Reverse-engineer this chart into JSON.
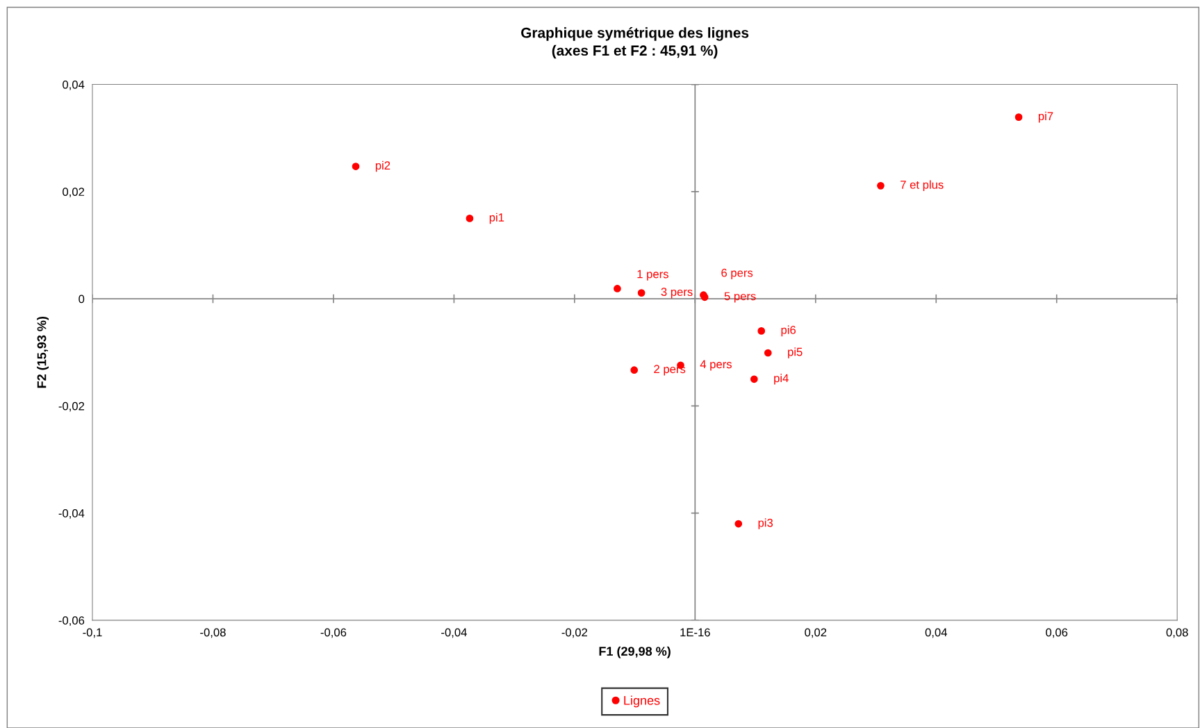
{
  "chart_data": {
    "type": "scatter",
    "title": "Graphique symétrique des lignes\n(axes F1 et F2 : 45,91 %)",
    "xlabel": "F1 (29,98 %)",
    "ylabel": "F2 (15,93 %)",
    "series": [
      {
        "name": "Lignes",
        "color": "#ff0000",
        "marker": "circle",
        "x": [
          -0.0563,
          -0.0374,
          -0.0129,
          -0.0089,
          0.0014,
          0.0016,
          0.011,
          0.0121,
          -0.0024,
          -0.0101,
          0.0098,
          0.0072,
          0.0308,
          0.0537
        ],
        "values": [
          0.0247,
          0.015,
          0.0019,
          0.0011,
          0.0007,
          0.0003,
          -0.006,
          -0.0101,
          -0.0124,
          -0.0133,
          -0.015,
          -0.042,
          0.0211,
          0.0339
        ]
      }
    ],
    "annotations": [
      {
        "text": "pi2",
        "x": -0.0563,
        "y": 0.0247
      },
      {
        "text": "pi1",
        "x": -0.0374,
        "y": 0.015
      },
      {
        "text": "1 pers",
        "x": -0.0129,
        "y": 0.0019
      },
      {
        "text": "3 pers",
        "x": -0.0089,
        "y": 0.0011
      },
      {
        "text": "6 pers",
        "x": 0.0014,
        "y": 0.0007
      },
      {
        "text": "5 pers",
        "x": 0.0016,
        "y": 0.0003
      },
      {
        "text": "pi6",
        "x": 0.011,
        "y": -0.006
      },
      {
        "text": "pi5",
        "x": 0.0121,
        "y": -0.0101
      },
      {
        "text": "4 pers",
        "x": -0.0024,
        "y": -0.0124
      },
      {
        "text": "2 pers",
        "x": -0.0101,
        "y": -0.0133
      },
      {
        "text": "pi4",
        "x": 0.0098,
        "y": -0.015
      },
      {
        "text": "pi3",
        "x": 0.0072,
        "y": -0.042
      },
      {
        "text": "7 et plus",
        "x": 0.0308,
        "y": 0.0211
      },
      {
        "text": "pi7",
        "x": 0.0537,
        "y": 0.0339
      }
    ],
    "xlim": [
      -0.1,
      0.08
    ],
    "ylim": [
      -0.06,
      0.04
    ],
    "xticks": [
      {
        "value": -0.1,
        "label": "-0,1"
      },
      {
        "value": -0.08,
        "label": "-0,08"
      },
      {
        "value": -0.06,
        "label": "-0,06"
      },
      {
        "value": -0.04,
        "label": "-0,04"
      },
      {
        "value": -0.02,
        "label": "-0,02"
      },
      {
        "value": 0,
        "label": "1E-16"
      },
      {
        "value": 0.02,
        "label": "0,02"
      },
      {
        "value": 0.04,
        "label": "0,04"
      },
      {
        "value": 0.06,
        "label": "0,06"
      },
      {
        "value": 0.08,
        "label": "0,08"
      }
    ],
    "yticks": [
      {
        "value": -0.06,
        "label": "-0,06"
      },
      {
        "value": -0.04,
        "label": "-0,04"
      },
      {
        "value": -0.02,
        "label": "-0,02"
      },
      {
        "value": 0,
        "label": "0"
      },
      {
        "value": 0.02,
        "label": "0,02"
      },
      {
        "value": 0.04,
        "label": "0,04"
      }
    ],
    "ref_lines": [
      {
        "axis": "x",
        "value": 0,
        "color": "#808080"
      },
      {
        "axis": "y",
        "value": 0,
        "color": "#868686"
      }
    ],
    "grid": false,
    "legend": "bottom"
  }
}
